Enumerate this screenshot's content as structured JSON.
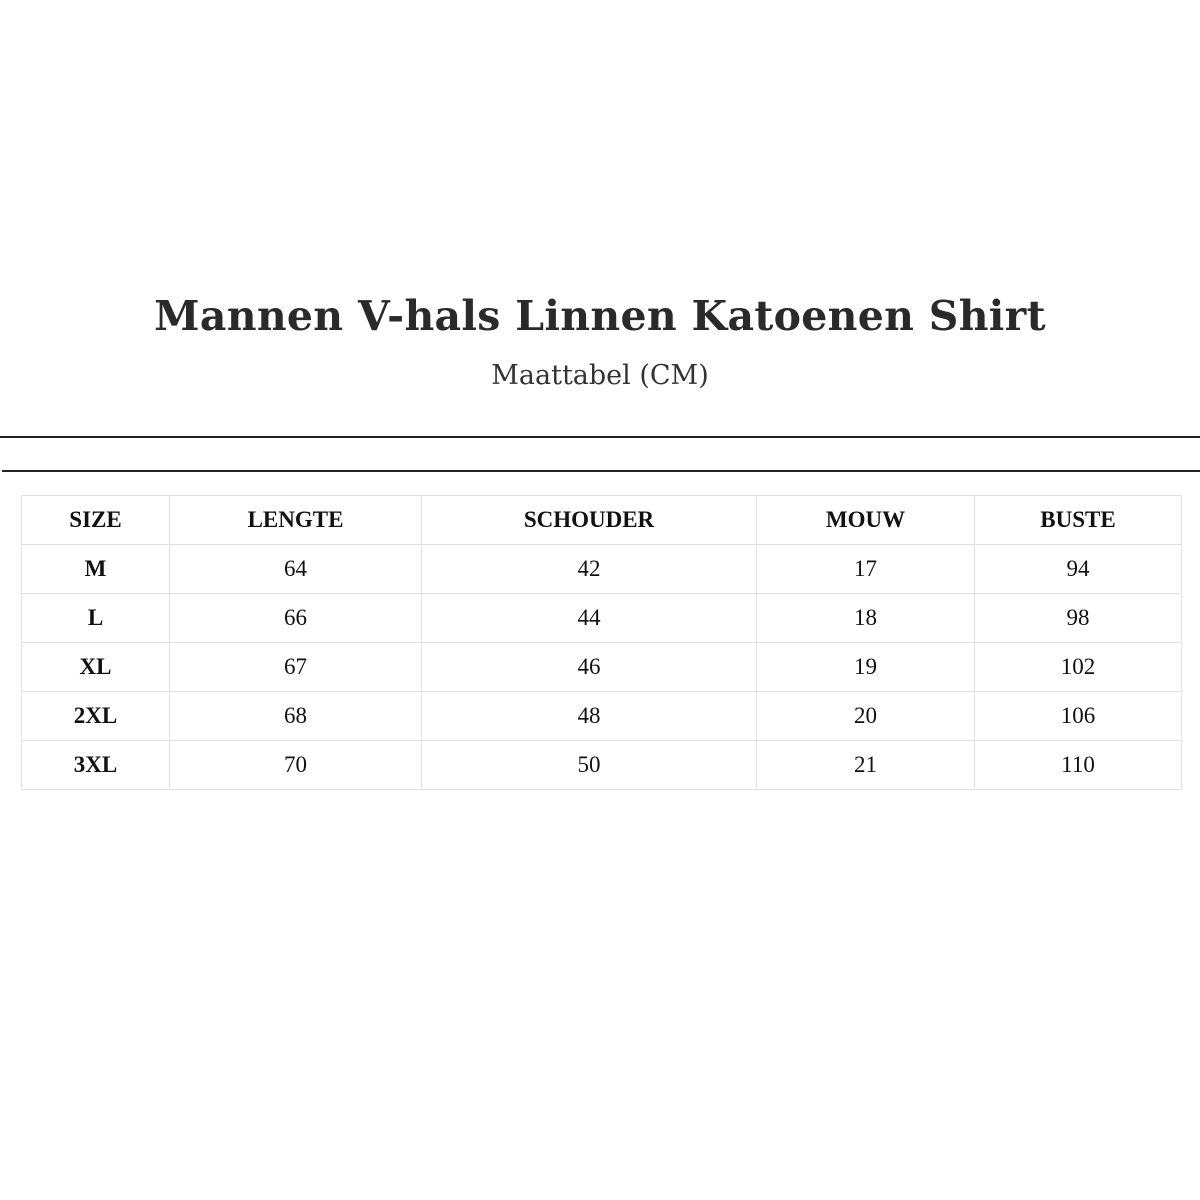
{
  "title": "Mannen V-hals Linnen Katoenen Shirt",
  "subtitle": "Maattabel (CM)",
  "table": {
    "headers": [
      "SIZE",
      "LENGTE",
      "SCHOUDER",
      "MOUW",
      "BUSTE"
    ],
    "rows": [
      [
        "M",
        "64",
        "42",
        "17",
        "94"
      ],
      [
        "L",
        "66",
        "44",
        "18",
        "98"
      ],
      [
        "XL",
        "67",
        "46",
        "19",
        "102"
      ],
      [
        "2XL",
        "68",
        "48",
        "20",
        "106"
      ],
      [
        "3XL",
        "70",
        "50",
        "21",
        "110"
      ]
    ]
  }
}
